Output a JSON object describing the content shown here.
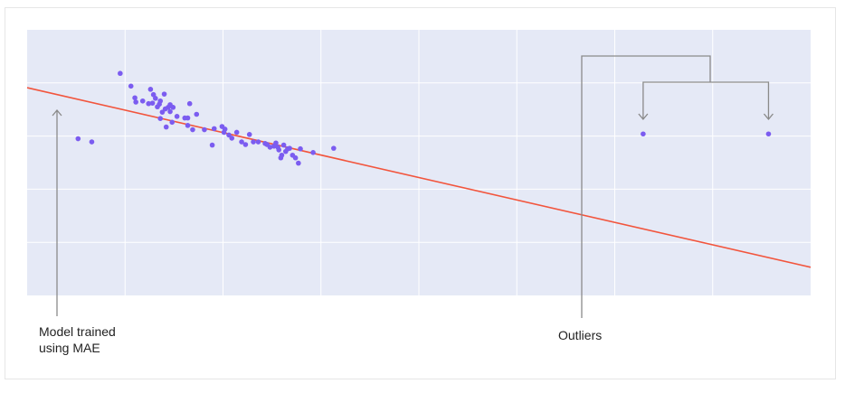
{
  "chart_data": {
    "type": "scatter",
    "title": "",
    "xlabel": "",
    "ylabel": "",
    "xlim": [
      0,
      8
    ],
    "ylim": [
      0,
      5
    ],
    "grid": true,
    "x_gridlines": [
      1,
      2,
      3,
      4,
      5,
      6,
      7
    ],
    "y_gridlines": [
      1,
      2,
      3,
      4
    ],
    "background": "#e5e9f6",
    "point_color": "#7b5cf0",
    "line_color": "#f2553d",
    "points": [
      {
        "x": 0.52,
        "y": 2.95
      },
      {
        "x": 0.66,
        "y": 2.89
      },
      {
        "x": 0.95,
        "y": 4.18
      },
      {
        "x": 1.06,
        "y": 3.94
      },
      {
        "x": 1.1,
        "y": 3.72
      },
      {
        "x": 1.11,
        "y": 3.64
      },
      {
        "x": 1.18,
        "y": 3.66
      },
      {
        "x": 1.24,
        "y": 3.61
      },
      {
        "x": 1.26,
        "y": 3.88
      },
      {
        "x": 1.28,
        "y": 3.62
      },
      {
        "x": 1.29,
        "y": 3.78
      },
      {
        "x": 1.31,
        "y": 3.71
      },
      {
        "x": 1.33,
        "y": 3.55
      },
      {
        "x": 1.35,
        "y": 3.6
      },
      {
        "x": 1.36,
        "y": 3.66
      },
      {
        "x": 1.36,
        "y": 3.33
      },
      {
        "x": 1.38,
        "y": 3.45
      },
      {
        "x": 1.4,
        "y": 3.79
      },
      {
        "x": 1.41,
        "y": 3.51
      },
      {
        "x": 1.42,
        "y": 3.17
      },
      {
        "x": 1.44,
        "y": 3.54
      },
      {
        "x": 1.46,
        "y": 3.59
      },
      {
        "x": 1.46,
        "y": 3.46
      },
      {
        "x": 1.48,
        "y": 3.26
      },
      {
        "x": 1.49,
        "y": 3.54
      },
      {
        "x": 1.53,
        "y": 3.37
      },
      {
        "x": 1.61,
        "y": 3.34
      },
      {
        "x": 1.64,
        "y": 3.34
      },
      {
        "x": 1.64,
        "y": 3.2
      },
      {
        "x": 1.66,
        "y": 3.61
      },
      {
        "x": 1.69,
        "y": 3.12
      },
      {
        "x": 1.73,
        "y": 3.41
      },
      {
        "x": 1.81,
        "y": 3.12
      },
      {
        "x": 1.89,
        "y": 2.83
      },
      {
        "x": 1.91,
        "y": 3.14
      },
      {
        "x": 1.99,
        "y": 3.18
      },
      {
        "x": 2.01,
        "y": 3.07
      },
      {
        "x": 2.02,
        "y": 3.13
      },
      {
        "x": 2.06,
        "y": 3.02
      },
      {
        "x": 2.09,
        "y": 2.96
      },
      {
        "x": 2.14,
        "y": 3.07
      },
      {
        "x": 2.19,
        "y": 2.89
      },
      {
        "x": 2.23,
        "y": 2.84
      },
      {
        "x": 2.27,
        "y": 3.03
      },
      {
        "x": 2.31,
        "y": 2.89
      },
      {
        "x": 2.36,
        "y": 2.89
      },
      {
        "x": 2.43,
        "y": 2.86
      },
      {
        "x": 2.45,
        "y": 2.84
      },
      {
        "x": 2.48,
        "y": 2.79
      },
      {
        "x": 2.52,
        "y": 2.81
      },
      {
        "x": 2.54,
        "y": 2.87
      },
      {
        "x": 2.56,
        "y": 2.79
      },
      {
        "x": 2.57,
        "y": 2.74
      },
      {
        "x": 2.59,
        "y": 2.59
      },
      {
        "x": 2.6,
        "y": 2.64
      },
      {
        "x": 2.62,
        "y": 2.83
      },
      {
        "x": 2.64,
        "y": 2.71
      },
      {
        "x": 2.66,
        "y": 2.76
      },
      {
        "x": 2.68,
        "y": 2.77
      },
      {
        "x": 2.71,
        "y": 2.64
      },
      {
        "x": 2.74,
        "y": 2.59
      },
      {
        "x": 2.77,
        "y": 2.49
      },
      {
        "x": 2.79,
        "y": 2.76
      },
      {
        "x": 2.92,
        "y": 2.69
      },
      {
        "x": 3.13,
        "y": 2.77
      },
      {
        "x": 6.29,
        "y": 3.04
      },
      {
        "x": 7.57,
        "y": 3.04
      }
    ],
    "regression_line": {
      "from": {
        "x": 0,
        "y": 3.91
      },
      "to": {
        "x": 8,
        "y": 0.53
      }
    }
  },
  "annotations": {
    "model_label": "Model trained\nusing MAE",
    "outliers_label": "Outliers"
  }
}
